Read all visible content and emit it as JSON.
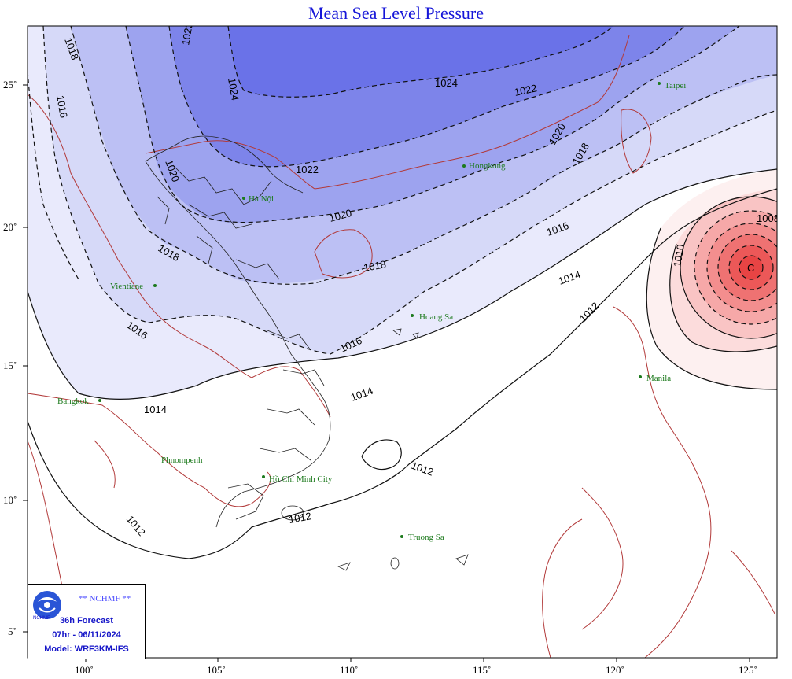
{
  "title": "Mean Sea Level Pressure",
  "axes": {
    "x_ticks": [
      "100˚",
      "105˚",
      "110˚",
      "115˚",
      "120˚",
      "125˚"
    ],
    "y_ticks": [
      "25˚",
      "20˚",
      "15˚",
      "10˚",
      "5˚"
    ]
  },
  "contour_labels": {
    "c1024a": "1024",
    "c1024b": "1024",
    "c1022a": "1022",
    "c1022b": "1022",
    "c1022c": "1022",
    "c1020a": "1020",
    "c1020b": "1020",
    "c1020c": "1020",
    "c1018a": "1018",
    "c1018b": "1018",
    "c1018c": "1018",
    "c1018d": "1018",
    "c1016a": "1016",
    "c1016b": "1016",
    "c1016c": "1016",
    "c1016d": "1016",
    "c1014a": "1014",
    "c1014b": "1014",
    "c1014c": "1014",
    "c1012a": "1012",
    "c1012b": "1012",
    "c1012c": "1012",
    "c1012d": "1012",
    "c1010": "1010",
    "c1008": "1008"
  },
  "low_center_label": "C",
  "cities": {
    "taipei": "Taipei",
    "hongkong": "Hongkong",
    "hanoi": "Hà Nội",
    "vientiane": "Vientiane",
    "hoangsa": "Hoang Sa",
    "manila": "Manila",
    "bangkok": "Bangkok",
    "phnompenh": "Phnompenh",
    "hcmc": "Hồ Chí Minh City",
    "truongsa": "Truong Sa"
  },
  "info_box": {
    "logo_text": "NCHMF",
    "org": "** NCHMF **",
    "forecast": "36h Forecast",
    "valid_time": "07hr - 06/11/2024",
    "model": "Model: WRF3KM-IFS"
  },
  "colors": {
    "high_dark": "#6b73ea",
    "high_mid": "#9ba1f0",
    "high_light": "#c8cbf6",
    "high_faint": "#e7e8fb",
    "low_core": "#ee4444",
    "low_mid": "#f59a9a",
    "low_light": "#fcdede",
    "coast": "#b23a3a",
    "label": "#1d7a1d"
  }
}
